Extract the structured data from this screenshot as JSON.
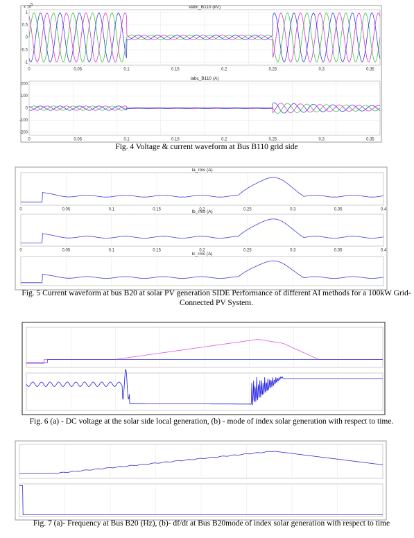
{
  "figures": [
    {
      "caption": "Fig. 4 Voltage & current waveform at Bus B110 grid side",
      "panels": [
        {
          "title": "Vabc_B110 (kV)",
          "exponent_base": "x 10",
          "exponent": "5",
          "yticks": [
            "1",
            "0.5",
            "0",
            "-0.5",
            "-1"
          ],
          "xticks": [
            "0",
            "0.05",
            "0.1",
            "0.15",
            "0.2",
            "0.25",
            "0.3",
            "0.35"
          ]
        },
        {
          "title": "Iabc_B110 (A)",
          "yticks": [
            "200",
            "100",
            "0",
            "-100",
            "-200"
          ],
          "xticks": [
            "0",
            "0.05",
            "0.1",
            "0.15",
            "0.2",
            "0.25",
            "0.3",
            "0.35"
          ]
        }
      ]
    },
    {
      "caption": "Fig. 5 Current waveform at bus B20 at solar PV generation SIDE Performance of different AI methods for a 100kW Grid-Connected PV System.",
      "panels": [
        {
          "title": "Ia_rms (A)",
          "xticks": [
            "0",
            "0.05",
            "0.1",
            "0.15",
            "0.2",
            "0.25",
            "0.3",
            "0.35",
            "0.4"
          ]
        },
        {
          "title": "Ib_rms (A)",
          "xticks": [
            "0",
            "0.05",
            "0.1",
            "0.15",
            "0.2",
            "0.25",
            "0.3",
            "0.35",
            "0.4"
          ]
        },
        {
          "title": "Ic_rms (A)"
        }
      ]
    },
    {
      "caption": "Fig. 6 (a) - DC voltage at the solar side local generation, (b) - mode of index solar generation with respect to time.",
      "panels": [
        {},
        {}
      ]
    },
    {
      "caption": "Fig. 7 (a)- Frequency at Bus B20 (Hz), (b)- df/dt at Bus B20mode of index solar generation with respect to time",
      "panels": [
        {},
        {}
      ]
    }
  ]
}
